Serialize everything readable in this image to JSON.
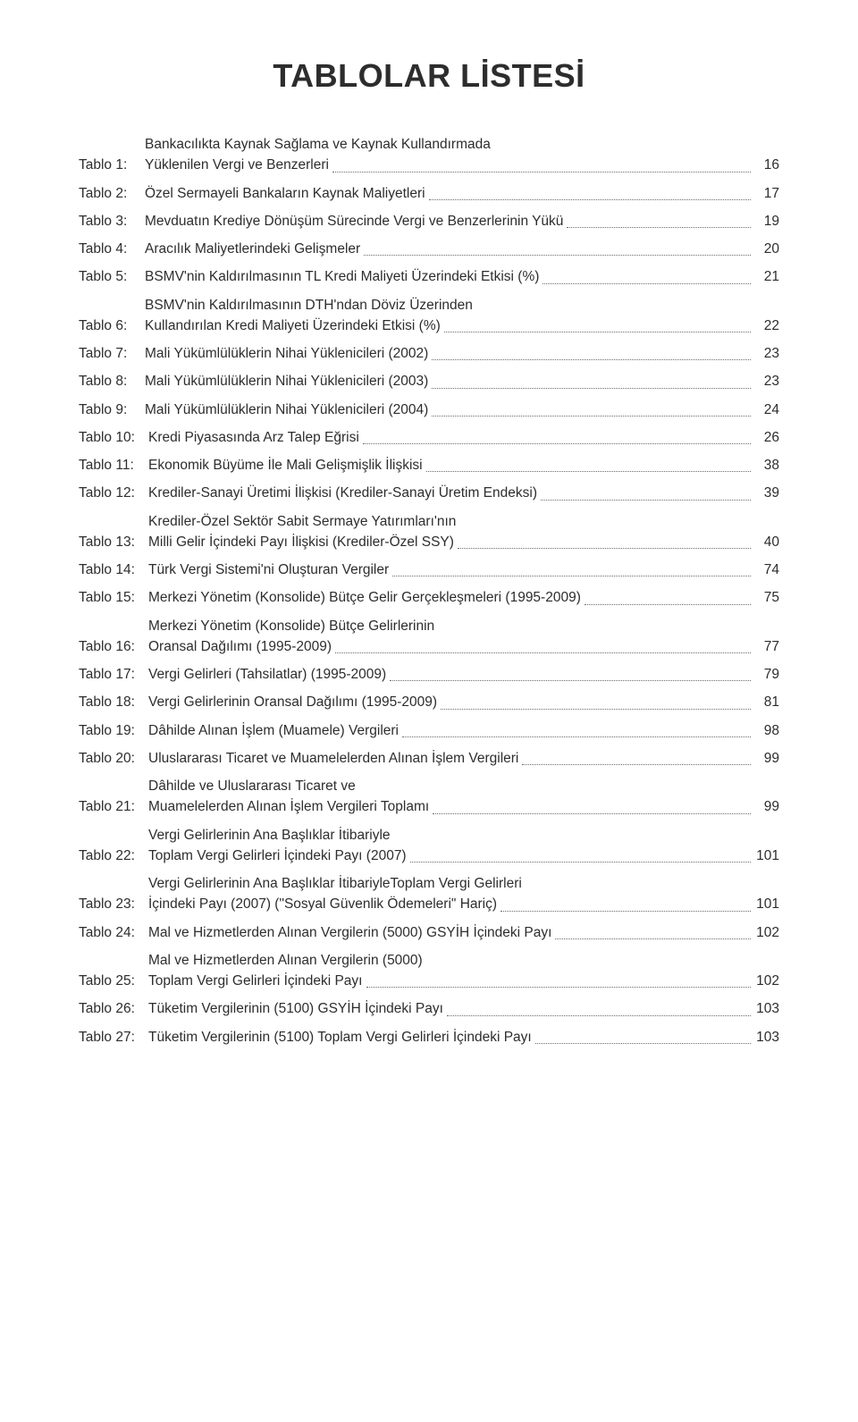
{
  "title": "TABLOLAR LİSTESİ",
  "entries": [
    {
      "label": "Tablo 1:",
      "lines": [
        "Bankacılıkta Kaynak Sağlama ve Kaynak Kullandırmada",
        "Yüklenilen Vergi ve Benzerleri"
      ],
      "page": "16"
    },
    {
      "label": "Tablo 2:",
      "lines": [
        "Özel Sermayeli Bankaların Kaynak Maliyetleri"
      ],
      "page": "17"
    },
    {
      "label": "Tablo 3:",
      "lines": [
        "Mevduatın Krediye Dönüşüm Sürecinde Vergi ve Benzerlerinin Yükü"
      ],
      "page": "19"
    },
    {
      "label": "Tablo 4:",
      "lines": [
        "Aracılık Maliyetlerindeki Gelişmeler"
      ],
      "page": "20"
    },
    {
      "label": "Tablo 5:",
      "lines": [
        "BSMV'nin Kaldırılmasının TL Kredi Maliyeti Üzerindeki Etkisi (%)"
      ],
      "page": "21"
    },
    {
      "label": "Tablo 6:",
      "lines": [
        "BSMV'nin Kaldırılmasının DTH'ndan Döviz Üzerinden",
        "Kullandırılan Kredi Maliyeti Üzerindeki Etkisi (%)"
      ],
      "page": "22"
    },
    {
      "label": "Tablo 7:",
      "lines": [
        "Mali Yükümlülüklerin Nihai Yüklenicileri (2002)"
      ],
      "page": "23"
    },
    {
      "label": "Tablo 8:",
      "lines": [
        "Mali Yükümlülüklerin Nihai Yüklenicileri (2003)"
      ],
      "page": "23"
    },
    {
      "label": "Tablo 9:",
      "lines": [
        "Mali Yükümlülüklerin Nihai Yüklenicileri (2004)"
      ],
      "page": "24"
    },
    {
      "label": "Tablo 10:",
      "lines": [
        "Kredi Piyasasında Arz Talep Eğrisi"
      ],
      "page": "26"
    },
    {
      "label": "Tablo 11:",
      "lines": [
        "Ekonomik Büyüme İle Mali Gelişmişlik İlişkisi"
      ],
      "page": "38"
    },
    {
      "label": "Tablo 12:",
      "lines": [
        "Krediler-Sanayi Üretimi İlişkisi (Krediler-Sanayi Üretim Endeksi)"
      ],
      "page": "39"
    },
    {
      "label": "Tablo 13:",
      "lines": [
        "Krediler-Özel Sektör Sabit Sermaye Yatırımları'nın",
        "Milli Gelir İçindeki Payı İlişkisi (Krediler-Özel SSY)"
      ],
      "page": "40"
    },
    {
      "label": "Tablo 14:",
      "lines": [
        "Türk Vergi Sistemi'ni Oluşturan Vergiler"
      ],
      "page": "74"
    },
    {
      "label": "Tablo 15:",
      "lines": [
        "Merkezi Yönetim (Konsolide) Bütçe Gelir Gerçekleşmeleri (1995-2009)"
      ],
      "page": "75"
    },
    {
      "label": "Tablo 16:",
      "lines": [
        "Merkezi Yönetim (Konsolide) Bütçe Gelirlerinin",
        "Oransal Dağılımı (1995-2009)"
      ],
      "page": "77"
    },
    {
      "label": "Tablo 17:",
      "lines": [
        "Vergi Gelirleri (Tahsilatlar) (1995-2009)"
      ],
      "page": "79"
    },
    {
      "label": "Tablo 18:",
      "lines": [
        "Vergi Gelirlerinin Oransal Dağılımı (1995-2009)"
      ],
      "page": "81"
    },
    {
      "label": "Tablo 19:",
      "lines": [
        "Dâhilde Alınan İşlem (Muamele) Vergileri"
      ],
      "page": "98"
    },
    {
      "label": "Tablo 20:",
      "lines": [
        "Uluslararası Ticaret ve Muamelelerden Alınan İşlem Vergileri"
      ],
      "page": "99"
    },
    {
      "label": "Tablo 21:",
      "lines": [
        "Dâhilde ve Uluslararası Ticaret ve",
        "Muamelelerden Alınan İşlem Vergileri Toplamı"
      ],
      "page": "99"
    },
    {
      "label": "Tablo 22:",
      "lines": [
        "Vergi Gelirlerinin Ana Başlıklar İtibariyle",
        "Toplam Vergi Gelirleri İçindeki Payı (2007)"
      ],
      "page": "101"
    },
    {
      "label": "Tablo 23:",
      "lines": [
        "Vergi Gelirlerinin Ana Başlıklar İtibariyleToplam Vergi Gelirleri",
        "İçindeki Payı (2007) (\"Sosyal Güvenlik Ödemeleri\" Hariç)"
      ],
      "page": "101"
    },
    {
      "label": "Tablo 24:",
      "lines": [
        "Mal ve Hizmetlerden Alınan Vergilerin (5000) GSYİH İçindeki Payı"
      ],
      "page": "102"
    },
    {
      "label": "Tablo 25:",
      "lines": [
        "Mal ve Hizmetlerden Alınan Vergilerin (5000)",
        "Toplam Vergi Gelirleri İçindeki Payı"
      ],
      "page": "102"
    },
    {
      "label": "Tablo 26:",
      "lines": [
        "Tüketim Vergilerinin (5100) GSYİH İçindeki Payı"
      ],
      "page": "103"
    },
    {
      "label": "Tablo 27:",
      "lines": [
        "Tüketim Vergilerinin (5100) Toplam Vergi Gelirleri İçindeki Payı"
      ],
      "page": "103"
    }
  ]
}
